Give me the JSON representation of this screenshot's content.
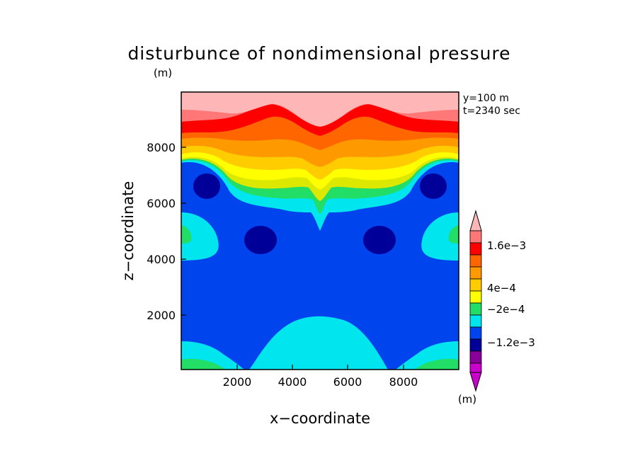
{
  "chart_data": {
    "type": "contour",
    "title": "disturbunce of nondimensional pressure",
    "title_unit": "(m)",
    "xlabel": "x−coordinate",
    "ylabel": "z−coordinate",
    "xlim": [
      0,
      10000
    ],
    "ylim": [
      0,
      10000
    ],
    "xticks": [
      "2000",
      "4000",
      "6000",
      "8000"
    ],
    "yticks": [
      "2000",
      "4000",
      "6000",
      "8000"
    ],
    "annotations": [
      "y=100 m",
      "t=2340 sec"
    ],
    "colorbar": {
      "unit": "(m)",
      "tick_labels": [
        "1.6e−3",
        "4e−4",
        "−2e−4",
        "−1.2e−3"
      ],
      "levels": [
        -0.0016,
        -0.0012,
        -0.0008,
        -0.0004,
        -0.0002,
        0.0,
        0.0002,
        0.0004,
        0.0006,
        0.0008,
        0.001,
        0.0012,
        0.0014,
        0.0016
      ],
      "colors": [
        "#cc00cc",
        "#880099",
        "#800080",
        "#000099",
        "#0044ee",
        "#00e5ee",
        "#22dd66",
        "#dde800",
        "#ffff00",
        "#ffcc00",
        "#ff9900",
        "#ff6600",
        "#ff0000",
        "#ff7777",
        "#ffb6b6"
      ]
    }
  }
}
